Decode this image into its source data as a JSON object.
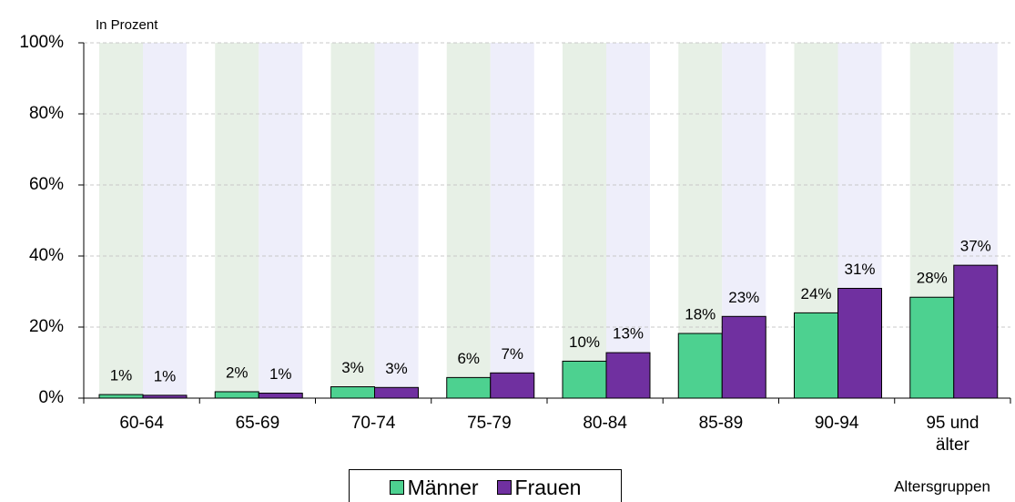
{
  "chart_data": {
    "type": "bar",
    "y_axis_label": "In Prozent",
    "x_axis_label": "Altersgruppen",
    "categories": [
      "60-64",
      "65-69",
      "70-74",
      "75-79",
      "80-84",
      "85-89",
      "90-94",
      "95 und älter"
    ],
    "series": [
      {
        "name": "Männer",
        "color": "#4dd190",
        "values": [
          1.0,
          1.8,
          3.2,
          5.8,
          10.4,
          18.2,
          24.0,
          28.4
        ],
        "value_labels": [
          "1%",
          "2%",
          "3%",
          "6%",
          "10%",
          "18%",
          "24%",
          "28%"
        ]
      },
      {
        "name": "Frauen",
        "color": "#7030a0",
        "values": [
          0.8,
          1.4,
          3.0,
          7.1,
          12.8,
          23.0,
          30.9,
          37.4
        ],
        "value_labels": [
          "1%",
          "1%",
          "3%",
          "7%",
          "13%",
          "23%",
          "31%",
          "37%"
        ]
      }
    ],
    "ylim": [
      0,
      100
    ],
    "yticks": [
      {
        "value": 0,
        "label": "0%"
      },
      {
        "value": 20,
        "label": "20%"
      },
      {
        "value": 40,
        "label": "40%"
      },
      {
        "value": 60,
        "label": "60%"
      },
      {
        "value": 80,
        "label": "80%"
      },
      {
        "value": 100,
        "label": "100%"
      }
    ],
    "grid": true,
    "legend": "bottom"
  }
}
